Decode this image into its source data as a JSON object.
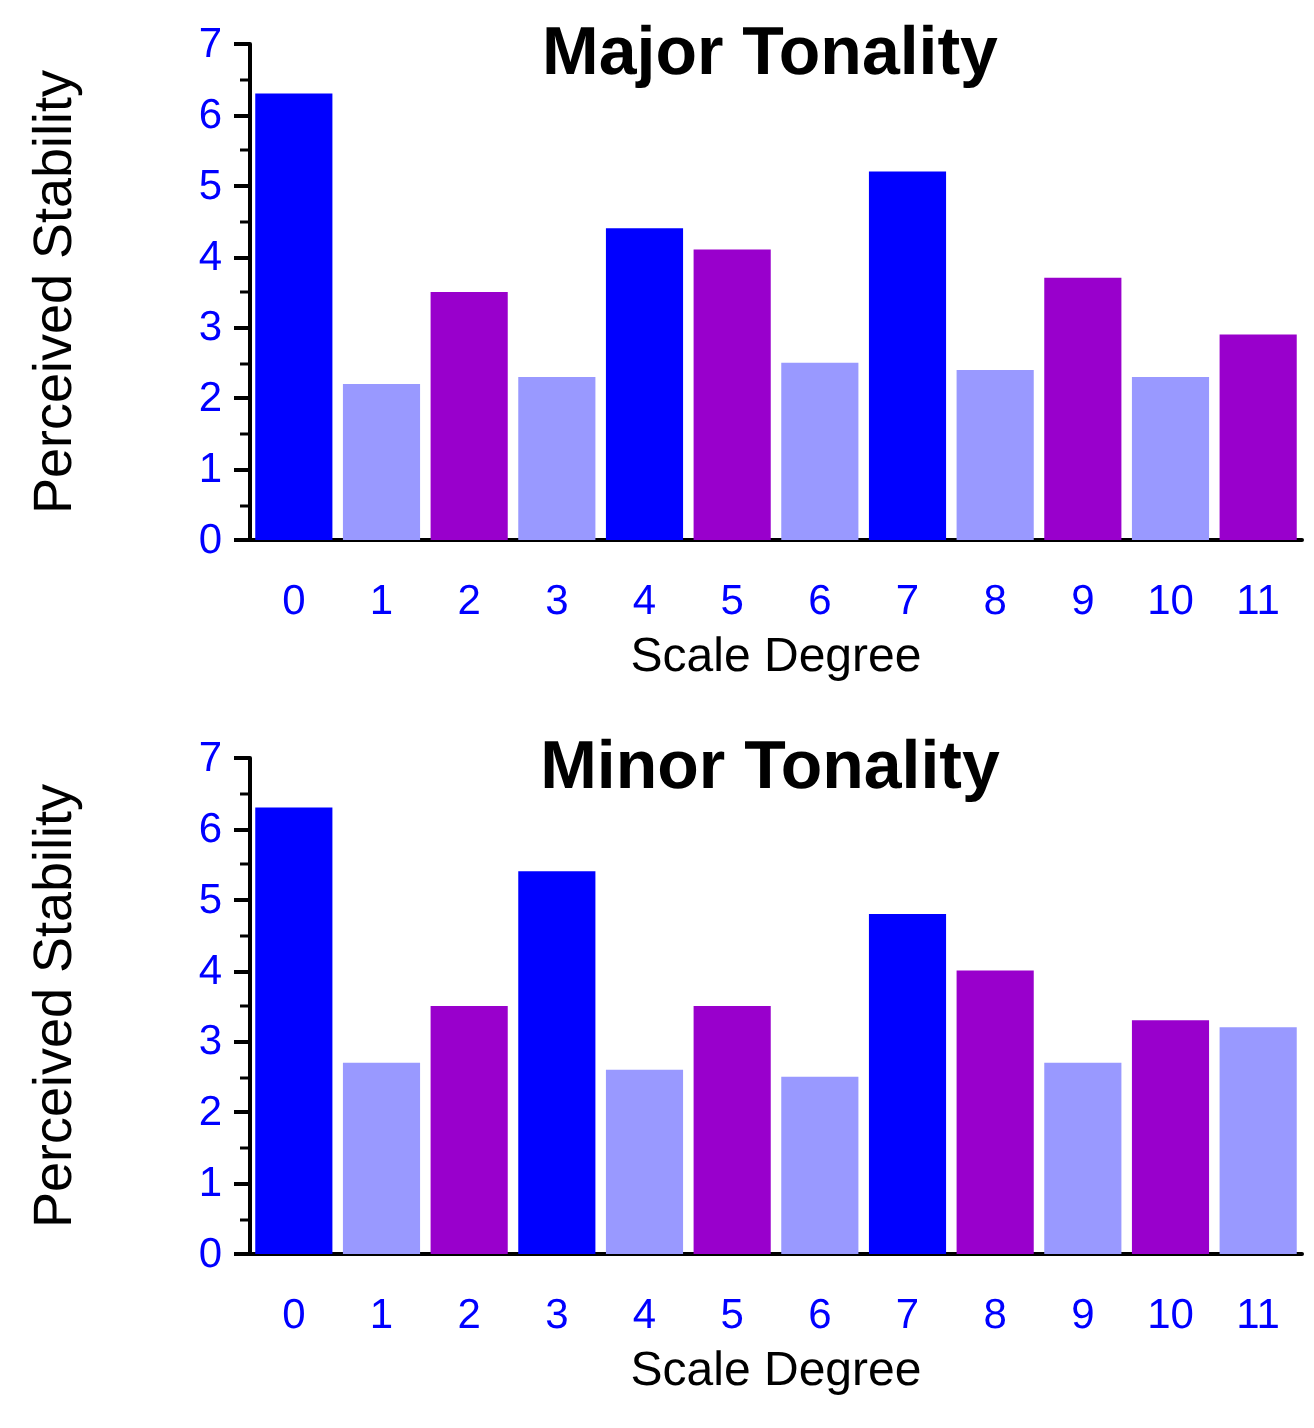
{
  "chart_data": [
    {
      "type": "bar",
      "title": "Major Tonality",
      "xlabel": "Scale Degree",
      "ylabel": "Perceived Stability",
      "categories": [
        "0",
        "1",
        "2",
        "3",
        "4",
        "5",
        "6",
        "7",
        "8",
        "9",
        "10",
        "11"
      ],
      "values": [
        6.3,
        2.2,
        3.5,
        2.3,
        4.4,
        4.1,
        2.5,
        5.2,
        2.4,
        3.7,
        2.3,
        2.9
      ],
      "colors": [
        "#0000ff",
        "#9999ff",
        "#9900cc",
        "#9999ff",
        "#0000ff",
        "#9900cc",
        "#9999ff",
        "#0000ff",
        "#9999ff",
        "#9900cc",
        "#9999ff",
        "#9900cc"
      ],
      "ylim": [
        0,
        7
      ],
      "yticks": [
        0,
        1,
        2,
        3,
        4,
        5,
        6,
        7
      ],
      "grid": false
    },
    {
      "type": "bar",
      "title": "Minor Tonality",
      "xlabel": "Scale Degree",
      "ylabel": "Perceived Stability",
      "categories": [
        "0",
        "1",
        "2",
        "3",
        "4",
        "5",
        "6",
        "7",
        "8",
        "9",
        "10",
        "11"
      ],
      "values": [
        6.3,
        2.7,
        3.5,
        5.4,
        2.6,
        3.5,
        2.5,
        4.8,
        4.0,
        2.7,
        3.3,
        3.2
      ],
      "colors": [
        "#0000ff",
        "#9999ff",
        "#9900cc",
        "#0000ff",
        "#9999ff",
        "#9900cc",
        "#9999ff",
        "#0000ff",
        "#9900cc",
        "#9999ff",
        "#9900cc",
        "#9999ff"
      ],
      "ylim": [
        0,
        7
      ],
      "yticks": [
        0,
        1,
        2,
        3,
        4,
        5,
        6,
        7
      ],
      "grid": false
    }
  ]
}
